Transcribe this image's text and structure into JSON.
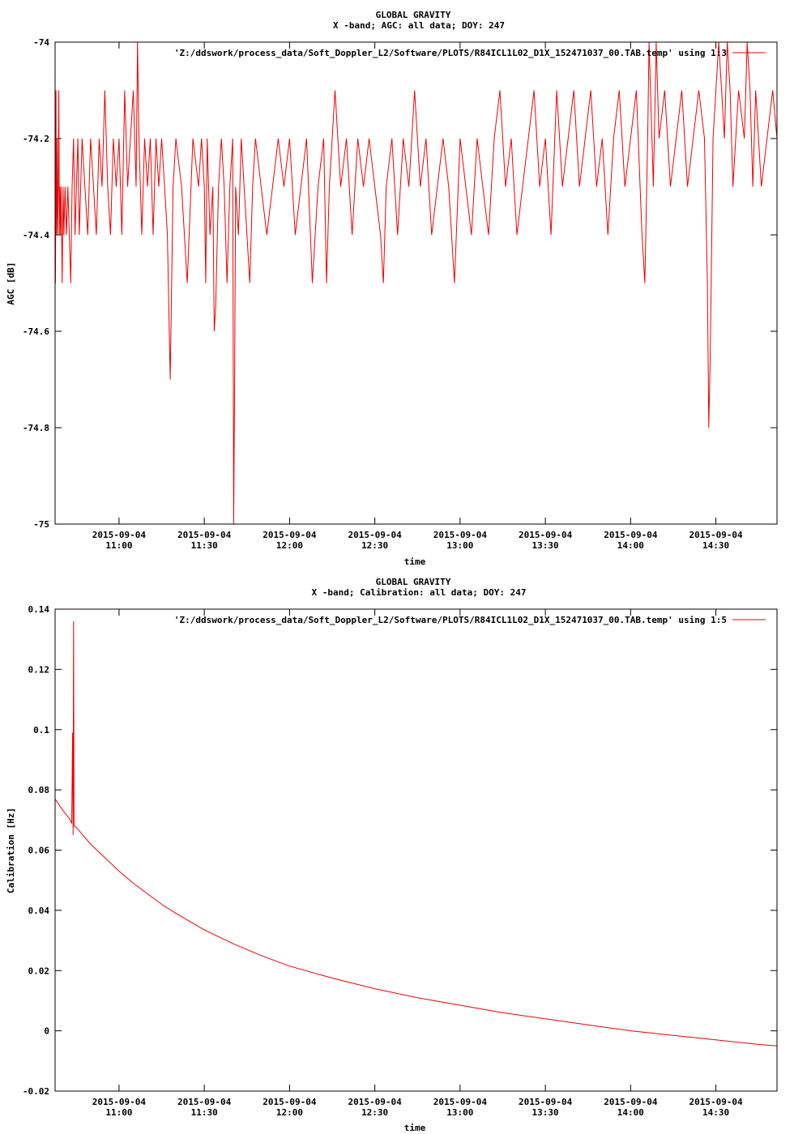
{
  "colors": {
    "series": "#ee0000",
    "axes": "#000000",
    "background": "#ffffff"
  },
  "chart_data": [
    {
      "type": "line",
      "title": "GLOBAL GRAVITY",
      "subtitle": "X -band; AGC: all data; DOY: 247",
      "xlabel": "time",
      "ylabel": "AGC [dB]",
      "ylim": [
        -75,
        -74
      ],
      "yticks": [
        -74,
        -74.2,
        -74.4,
        -74.6,
        -74.8,
        -75
      ],
      "ytick_labels": [
        "-74",
        "-74.2",
        "-74.4",
        "-74.6",
        "-74.8",
        "-75"
      ],
      "xlim": [
        "10:37:30",
        "14:51:30"
      ],
      "xtick_dates": [
        "2015-09-04",
        "2015-09-04",
        "2015-09-04",
        "2015-09-04",
        "2015-09-04",
        "2015-09-04",
        "2015-09-04",
        "2015-09-04"
      ],
      "xtick_times": [
        "11:00",
        "11:30",
        "12:00",
        "12:30",
        "13:00",
        "13:30",
        "14:00",
        "14:30"
      ],
      "grid": false,
      "legend_position": "top-right",
      "series": [
        {
          "name": "'Z:/ddswork/process_data/Soft_Doppler_L2/Software/PLOTS/R84ICL1L02_D1X_152471037_00.TAB.temp' using 1:3",
          "points": [
            [
              "10:37:30",
              -74.3
            ],
            [
              "10:37:36",
              -74.5
            ],
            [
              "10:37:42",
              -74.4
            ],
            [
              "10:37:48",
              -74.1
            ],
            [
              "10:37:54",
              -74.3
            ],
            [
              "10:38:00",
              -74.4
            ],
            [
              "10:38:12",
              -74.2
            ],
            [
              "10:38:24",
              -74.4
            ],
            [
              "10:38:36",
              -74.3
            ],
            [
              "10:38:48",
              -74.1
            ],
            [
              "10:39:00",
              -74.4
            ],
            [
              "10:39:12",
              -74.3
            ],
            [
              "10:39:24",
              -74.4
            ],
            [
              "10:39:36",
              -74.3
            ],
            [
              "10:40:00",
              -74.5
            ],
            [
              "10:40:18",
              -74.3
            ],
            [
              "10:40:36",
              -74.4
            ],
            [
              "10:41:00",
              -74.3
            ],
            [
              "10:41:30",
              -74.4
            ],
            [
              "10:42:00",
              -74.3
            ],
            [
              "10:42:30",
              -74.4
            ],
            [
              "10:43:00",
              -74.5
            ],
            [
              "10:43:30",
              -74.3
            ],
            [
              "10:44:00",
              -74.2
            ],
            [
              "10:44:30",
              -74.4
            ],
            [
              "10:45:00",
              -74.3
            ],
            [
              "10:45:30",
              -74.2
            ],
            [
              "10:46:00",
              -74.4
            ],
            [
              "10:46:30",
              -74.3
            ],
            [
              "10:47:00",
              -74.2
            ],
            [
              "10:48:00",
              -74.3
            ],
            [
              "10:49:00",
              -74.4
            ],
            [
              "10:50:00",
              -74.2
            ],
            [
              "10:51:00",
              -74.3
            ],
            [
              "10:52:00",
              -74.4
            ],
            [
              "10:53:00",
              -74.2
            ],
            [
              "10:54:00",
              -74.3
            ],
            [
              "10:55:00",
              -74.1
            ],
            [
              "10:56:00",
              -74.3
            ],
            [
              "10:57:00",
              -74.4
            ],
            [
              "10:58:00",
              -74.2
            ],
            [
              "10:59:00",
              -74.3
            ],
            [
              "11:00:00",
              -74.2
            ],
            [
              "11:01:00",
              -74.4
            ],
            [
              "11:02:00",
              -74.1
            ],
            [
              "11:03:00",
              -74.3
            ],
            [
              "11:04:00",
              -74.2
            ],
            [
              "11:05:00",
              -74.1
            ],
            [
              "11:06:00",
              -74.3
            ],
            [
              "11:06:30",
              -73.95
            ],
            [
              "11:07:00",
              -74.2
            ],
            [
              "11:08:00",
              -74.4
            ],
            [
              "11:09:00",
              -74.2
            ],
            [
              "11:10:00",
              -74.3
            ],
            [
              "11:11:00",
              -74.2
            ],
            [
              "11:12:00",
              -74.4
            ],
            [
              "11:13:00",
              -74.2
            ],
            [
              "11:14:00",
              -74.3
            ],
            [
              "11:15:00",
              -74.2
            ],
            [
              "11:16:00",
              -74.3
            ],
            [
              "11:17:00",
              -74.4
            ],
            [
              "11:18:00",
              -74.7
            ],
            [
              "11:19:00",
              -74.3
            ],
            [
              "11:20:00",
              -74.2
            ],
            [
              "11:22:00",
              -74.3
            ],
            [
              "11:24:00",
              -74.5
            ],
            [
              "11:26:00",
              -74.2
            ],
            [
              "11:28:00",
              -74.3
            ],
            [
              "11:29:00",
              -74.2
            ],
            [
              "11:30:00",
              -74.3
            ],
            [
              "11:30:30",
              -74.5
            ],
            [
              "11:31:00",
              -74.2
            ],
            [
              "11:32:00",
              -74.4
            ],
            [
              "11:33:00",
              -74.3
            ],
            [
              "11:33:30",
              -74.6
            ],
            [
              "11:34:00",
              -74.55
            ],
            [
              "11:35:00",
              -74.3
            ],
            [
              "11:36:00",
              -74.2
            ],
            [
              "11:37:00",
              -74.3
            ],
            [
              "11:38:00",
              -74.5
            ],
            [
              "11:39:00",
              -74.3
            ],
            [
              "11:40:00",
              -74.2
            ],
            [
              "11:40:20",
              -75.0
            ],
            [
              "11:40:40",
              -74.7
            ],
            [
              "11:41:00",
              -74.3
            ],
            [
              "11:42:00",
              -74.4
            ],
            [
              "11:43:00",
              -74.2
            ],
            [
              "11:44:00",
              -74.3
            ],
            [
              "11:45:00",
              -74.4
            ],
            [
              "11:46:00",
              -74.5
            ],
            [
              "11:47:00",
              -74.3
            ],
            [
              "11:48:00",
              -74.2
            ],
            [
              "11:50:00",
              -74.3
            ],
            [
              "11:52:00",
              -74.4
            ],
            [
              "11:54:00",
              -74.3
            ],
            [
              "11:56:00",
              -74.2
            ],
            [
              "11:58:00",
              -74.3
            ],
            [
              "12:00:00",
              -74.2
            ],
            [
              "12:02:00",
              -74.4
            ],
            [
              "12:04:00",
              -74.3
            ],
            [
              "12:06:00",
              -74.2
            ],
            [
              "12:08:00",
              -74.5
            ],
            [
              "12:10:00",
              -74.3
            ],
            [
              "12:12:00",
              -74.2
            ],
            [
              "12:13:00",
              -74.5
            ],
            [
              "12:14:00",
              -74.3
            ],
            [
              "12:16:00",
              -74.1
            ],
            [
              "12:18:00",
              -74.3
            ],
            [
              "12:20:00",
              -74.2
            ],
            [
              "12:22:00",
              -74.4
            ],
            [
              "12:24:00",
              -74.2
            ],
            [
              "12:26:00",
              -74.3
            ],
            [
              "12:28:00",
              -74.2
            ],
            [
              "12:30:00",
              -74.3
            ],
            [
              "12:32:00",
              -74.4
            ],
            [
              "12:33:00",
              -74.5
            ],
            [
              "12:34:00",
              -74.3
            ],
            [
              "12:36:00",
              -74.2
            ],
            [
              "12:38:00",
              -74.4
            ],
            [
              "12:40:00",
              -74.2
            ],
            [
              "12:42:00",
              -74.3
            ],
            [
              "12:44:00",
              -74.1
            ],
            [
              "12:46:00",
              -74.3
            ],
            [
              "12:48:00",
              -74.2
            ],
            [
              "12:50:00",
              -74.4
            ],
            [
              "12:52:00",
              -74.3
            ],
            [
              "12:54:00",
              -74.2
            ],
            [
              "12:56:00",
              -74.3
            ],
            [
              "12:58:00",
              -74.5
            ],
            [
              "13:00:00",
              -74.2
            ],
            [
              "13:02:00",
              -74.3
            ],
            [
              "13:04:00",
              -74.4
            ],
            [
              "13:06:00",
              -74.2
            ],
            [
              "13:08:00",
              -74.3
            ],
            [
              "13:10:00",
              -74.4
            ],
            [
              "13:12:00",
              -74.2
            ],
            [
              "13:14:00",
              -74.1
            ],
            [
              "13:16:00",
              -74.3
            ],
            [
              "13:18:00",
              -74.2
            ],
            [
              "13:20:00",
              -74.4
            ],
            [
              "13:22:00",
              -74.3
            ],
            [
              "13:24:00",
              -74.2
            ],
            [
              "13:26:00",
              -74.1
            ],
            [
              "13:28:00",
              -74.3
            ],
            [
              "13:30:00",
              -74.2
            ],
            [
              "13:32:00",
              -74.4
            ],
            [
              "13:34:00",
              -74.1
            ],
            [
              "13:36:00",
              -74.3
            ],
            [
              "13:38:00",
              -74.2
            ],
            [
              "13:40:00",
              -74.1
            ],
            [
              "13:42:00",
              -74.3
            ],
            [
              "13:44:00",
              -74.2
            ],
            [
              "13:46:00",
              -74.1
            ],
            [
              "13:48:00",
              -74.3
            ],
            [
              "13:50:00",
              -74.2
            ],
            [
              "13:52:00",
              -74.4
            ],
            [
              "13:54:00",
              -74.2
            ],
            [
              "13:56:00",
              -74.1
            ],
            [
              "13:58:00",
              -74.3
            ],
            [
              "14:00:00",
              -74.2
            ],
            [
              "14:02:00",
              -74.1
            ],
            [
              "14:04:00",
              -74.4
            ],
            [
              "14:05:00",
              -74.5
            ],
            [
              "14:06:00",
              -74.2
            ],
            [
              "14:06:30",
              -73.95
            ],
            [
              "14:07:00",
              -74.1
            ],
            [
              "14:08:00",
              -74.3
            ],
            [
              "14:09:00",
              -74.0
            ],
            [
              "14:10:00",
              -74.2
            ],
            [
              "14:12:00",
              -74.1
            ],
            [
              "14:14:00",
              -74.3
            ],
            [
              "14:16:00",
              -74.2
            ],
            [
              "14:18:00",
              -74.1
            ],
            [
              "14:20:00",
              -74.3
            ],
            [
              "14:22:00",
              -74.2
            ],
            [
              "14:24:00",
              -74.1
            ],
            [
              "14:26:00",
              -74.2
            ],
            [
              "14:27:00",
              -74.5
            ],
            [
              "14:27:30",
              -74.8
            ],
            [
              "14:28:00",
              -74.65
            ],
            [
              "14:29:00",
              -74.2
            ],
            [
              "14:30:00",
              -74.1
            ],
            [
              "14:31:00",
              -73.95
            ],
            [
              "14:32:00",
              -74.1
            ],
            [
              "14:33:00",
              -74.2
            ],
            [
              "14:34:00",
              -73.95
            ],
            [
              "14:35:00",
              -74.1
            ],
            [
              "14:36:00",
              -74.3
            ],
            [
              "14:38:00",
              -74.1
            ],
            [
              "14:40:00",
              -74.2
            ],
            [
              "14:41:00",
              -73.95
            ],
            [
              "14:42:00",
              -74.1
            ],
            [
              "14:43:00",
              -74.3
            ],
            [
              "14:44:00",
              -74.1
            ],
            [
              "14:46:00",
              -74.3
            ],
            [
              "14:48:00",
              -74.2
            ],
            [
              "14:50:00",
              -74.1
            ],
            [
              "14:51:30",
              -74.2
            ]
          ]
        }
      ]
    },
    {
      "type": "line",
      "title": "GLOBAL GRAVITY",
      "subtitle": "X -band; Calibration: all data; DOY: 247",
      "xlabel": "time",
      "ylabel": "Calibration [Hz]",
      "ylim": [
        -0.02,
        0.14
      ],
      "yticks": [
        0.14,
        0.12,
        0.1,
        0.08,
        0.06,
        0.04,
        0.02,
        0,
        -0.02
      ],
      "ytick_labels": [
        "0.14",
        "0.12",
        "0.1",
        "0.08",
        "0.06",
        "0.04",
        "0.02",
        "0",
        "-0.02"
      ],
      "xlim": [
        "10:37:30",
        "14:51:30"
      ],
      "xtick_dates": [
        "2015-09-04",
        "2015-09-04",
        "2015-09-04",
        "2015-09-04",
        "2015-09-04",
        "2015-09-04",
        "2015-09-04",
        "2015-09-04"
      ],
      "xtick_times": [
        "11:00",
        "11:30",
        "12:00",
        "12:30",
        "13:00",
        "13:30",
        "14:00",
        "14:30"
      ],
      "grid": false,
      "legend_position": "top-right",
      "series": [
        {
          "name": "'Z:/ddswork/process_data/Soft_Doppler_L2/Software/PLOTS/R84ICL1L02_D1X_152471037_00.TAB.temp' using 1:5",
          "points": [
            [
              "10:37:30",
              0.077
            ],
            [
              "10:40:00",
              0.0735
            ],
            [
              "10:42:30",
              0.0705
            ],
            [
              "10:43:20",
              0.069
            ],
            [
              "10:43:40",
              0.099
            ],
            [
              "10:43:50",
              0.065
            ],
            [
              "10:44:00",
              0.136
            ],
            [
              "10:44:10",
              0.068
            ],
            [
              "10:45:00",
              0.0675
            ],
            [
              "10:50:00",
              0.062
            ],
            [
              "10:55:00",
              0.0575
            ],
            [
              "11:00:00",
              0.053
            ],
            [
              "11:05:00",
              0.049
            ],
            [
              "11:10:00",
              0.0455
            ],
            [
              "11:15:00",
              0.042
            ],
            [
              "11:20:00",
              0.039
            ],
            [
              "11:30:00",
              0.0335
            ],
            [
              "11:40:00",
              0.029
            ],
            [
              "11:50:00",
              0.025
            ],
            [
              "12:00:00",
              0.0215
            ],
            [
              "12:15:00",
              0.0175
            ],
            [
              "12:30:00",
              0.014
            ],
            [
              "12:45:00",
              0.011
            ],
            [
              "13:00:00",
              0.0085
            ],
            [
              "13:15:00",
              0.006
            ],
            [
              "13:30:00",
              0.004
            ],
            [
              "13:45:00",
              0.002
            ],
            [
              "14:00:00",
              0.0
            ],
            [
              "14:15:00",
              -0.0015
            ],
            [
              "14:30:00",
              -0.003
            ],
            [
              "14:45:00",
              -0.0045
            ],
            [
              "14:51:30",
              -0.005
            ]
          ]
        }
      ]
    }
  ]
}
